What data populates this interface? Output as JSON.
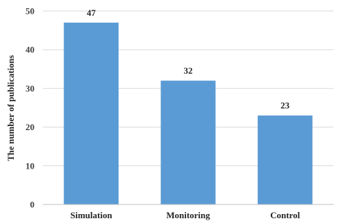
{
  "chart_data": {
    "type": "bar",
    "title": "",
    "xlabel": "",
    "ylabel": "The number of publications",
    "categories": [
      "Simulation",
      "Monitoring",
      "Control"
    ],
    "values": [
      47,
      32,
      23
    ],
    "data_labels": [
      "47",
      "32",
      "23"
    ],
    "ylim": [
      0,
      50
    ],
    "yticks": [
      0,
      10,
      20,
      30,
      40,
      50
    ],
    "ytick_labels": [
      "0",
      "10",
      "20",
      "30",
      "40",
      "50"
    ],
    "grid": true,
    "legend": "none",
    "colors": {
      "bar": "#5B9BD5",
      "grid": "#D9D9D9",
      "axis": "#BFBFBF"
    }
  }
}
